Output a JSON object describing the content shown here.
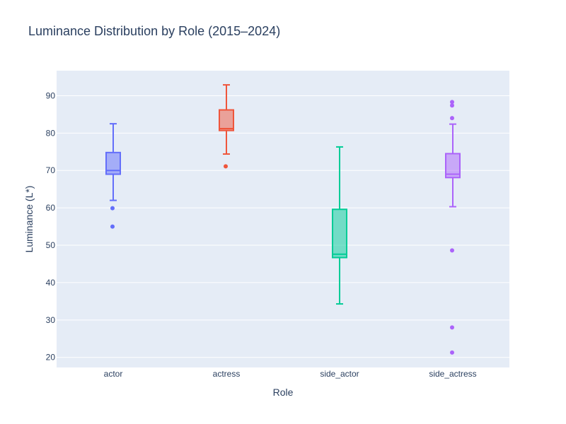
{
  "chart_data": {
    "type": "box",
    "title": "Luminance Distribution by Role (2015–2024)",
    "xlabel": "Role",
    "ylabel": "Luminance (L*)",
    "categories": [
      "actor",
      "actress",
      "side_actor",
      "side_actress"
    ],
    "ylim": [
      17.3,
      96.7
    ],
    "yticks": [
      20,
      30,
      40,
      50,
      60,
      70,
      80,
      90
    ],
    "grid": true,
    "series": [
      {
        "category": "actor",
        "color": "#636efa",
        "whisker_low": 62.0,
        "q1": 69.0,
        "median": 70.0,
        "q3": 74.8,
        "whisker_high": 82.5,
        "outliers": [
          59.9,
          55.0
        ]
      },
      {
        "category": "actress",
        "color": "#ef553b",
        "whisker_low": 74.4,
        "q1": 80.7,
        "median": 81.2,
        "q3": 86.2,
        "whisker_high": 92.9,
        "outliers": [
          71.1
        ]
      },
      {
        "category": "side_actor",
        "color": "#00cc96",
        "whisker_low": 34.3,
        "q1": 46.7,
        "median": 47.6,
        "q3": 59.6,
        "whisker_high": 76.3,
        "outliers": []
      },
      {
        "category": "side_actress",
        "color": "#ab63fa",
        "whisker_low": 60.3,
        "q1": 68.1,
        "median": 69.0,
        "q3": 74.5,
        "whisker_high": 82.4,
        "outliers": [
          88.3,
          87.4,
          84.0,
          48.6,
          28.0,
          21.3
        ]
      }
    ]
  }
}
